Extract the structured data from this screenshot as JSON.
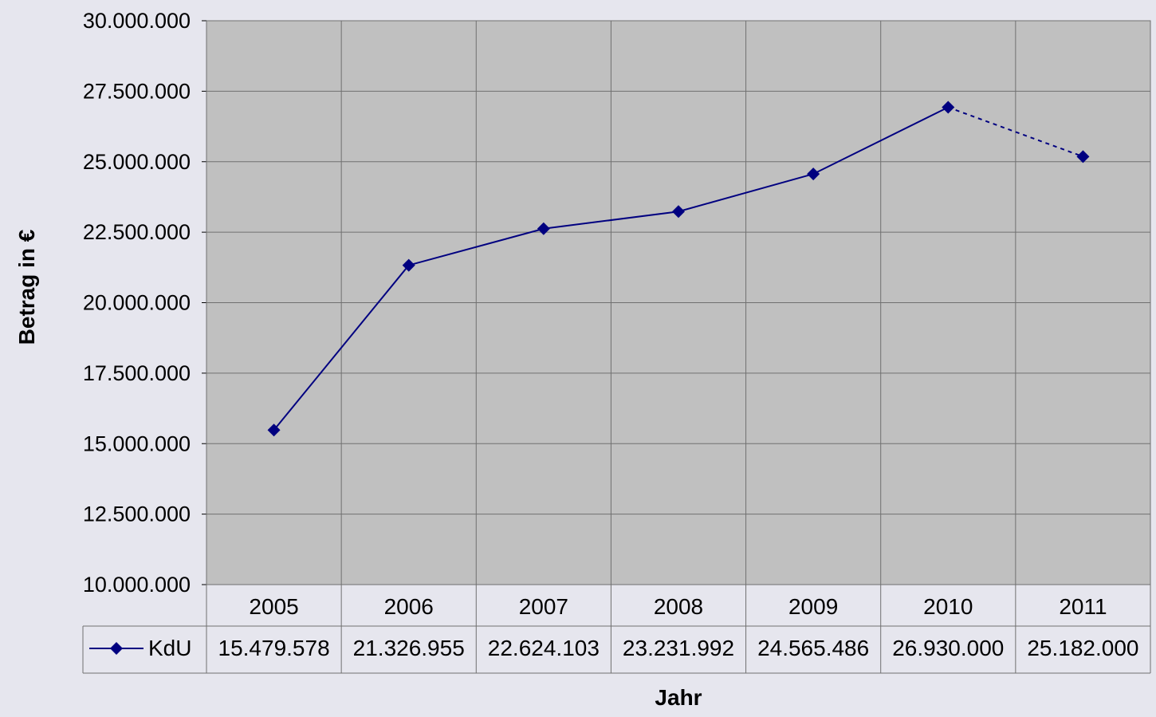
{
  "colors": {
    "background": "#e6e6ee",
    "plot_area": "#c0c0c0",
    "grid": "#707070",
    "series": "#000080"
  },
  "chart_data": {
    "type": "line",
    "title": "",
    "xlabel": "Jahr",
    "ylabel": "Betrag in €",
    "ylim": [
      10000000,
      30000000
    ],
    "yticks": [
      10000000,
      12500000,
      15000000,
      17500000,
      20000000,
      22500000,
      25000000,
      27500000,
      30000000
    ],
    "ytick_labels": [
      "10.000.000",
      "12.500.000",
      "15.000.000",
      "17.500.000",
      "20.000.000",
      "22.500.000",
      "25.000.000",
      "27.500.000",
      "30.000.000"
    ],
    "categories": [
      "2005",
      "2006",
      "2007",
      "2008",
      "2009",
      "2010",
      "2011"
    ],
    "grid": true,
    "legend": "data-table-left",
    "series": [
      {
        "name": "KdU",
        "values": [
          15479578,
          21326955,
          22624103,
          23231992,
          24565486,
          26930000,
          25182000
        ],
        "value_labels": [
          "15.479.578",
          "21.326.955",
          "22.624.103",
          "23.231.992",
          "24.565.486",
          "26.930.000",
          "25.182.000"
        ],
        "marker": "diamond",
        "dashed_last_segment": true
      }
    ],
    "data_table": true
  }
}
